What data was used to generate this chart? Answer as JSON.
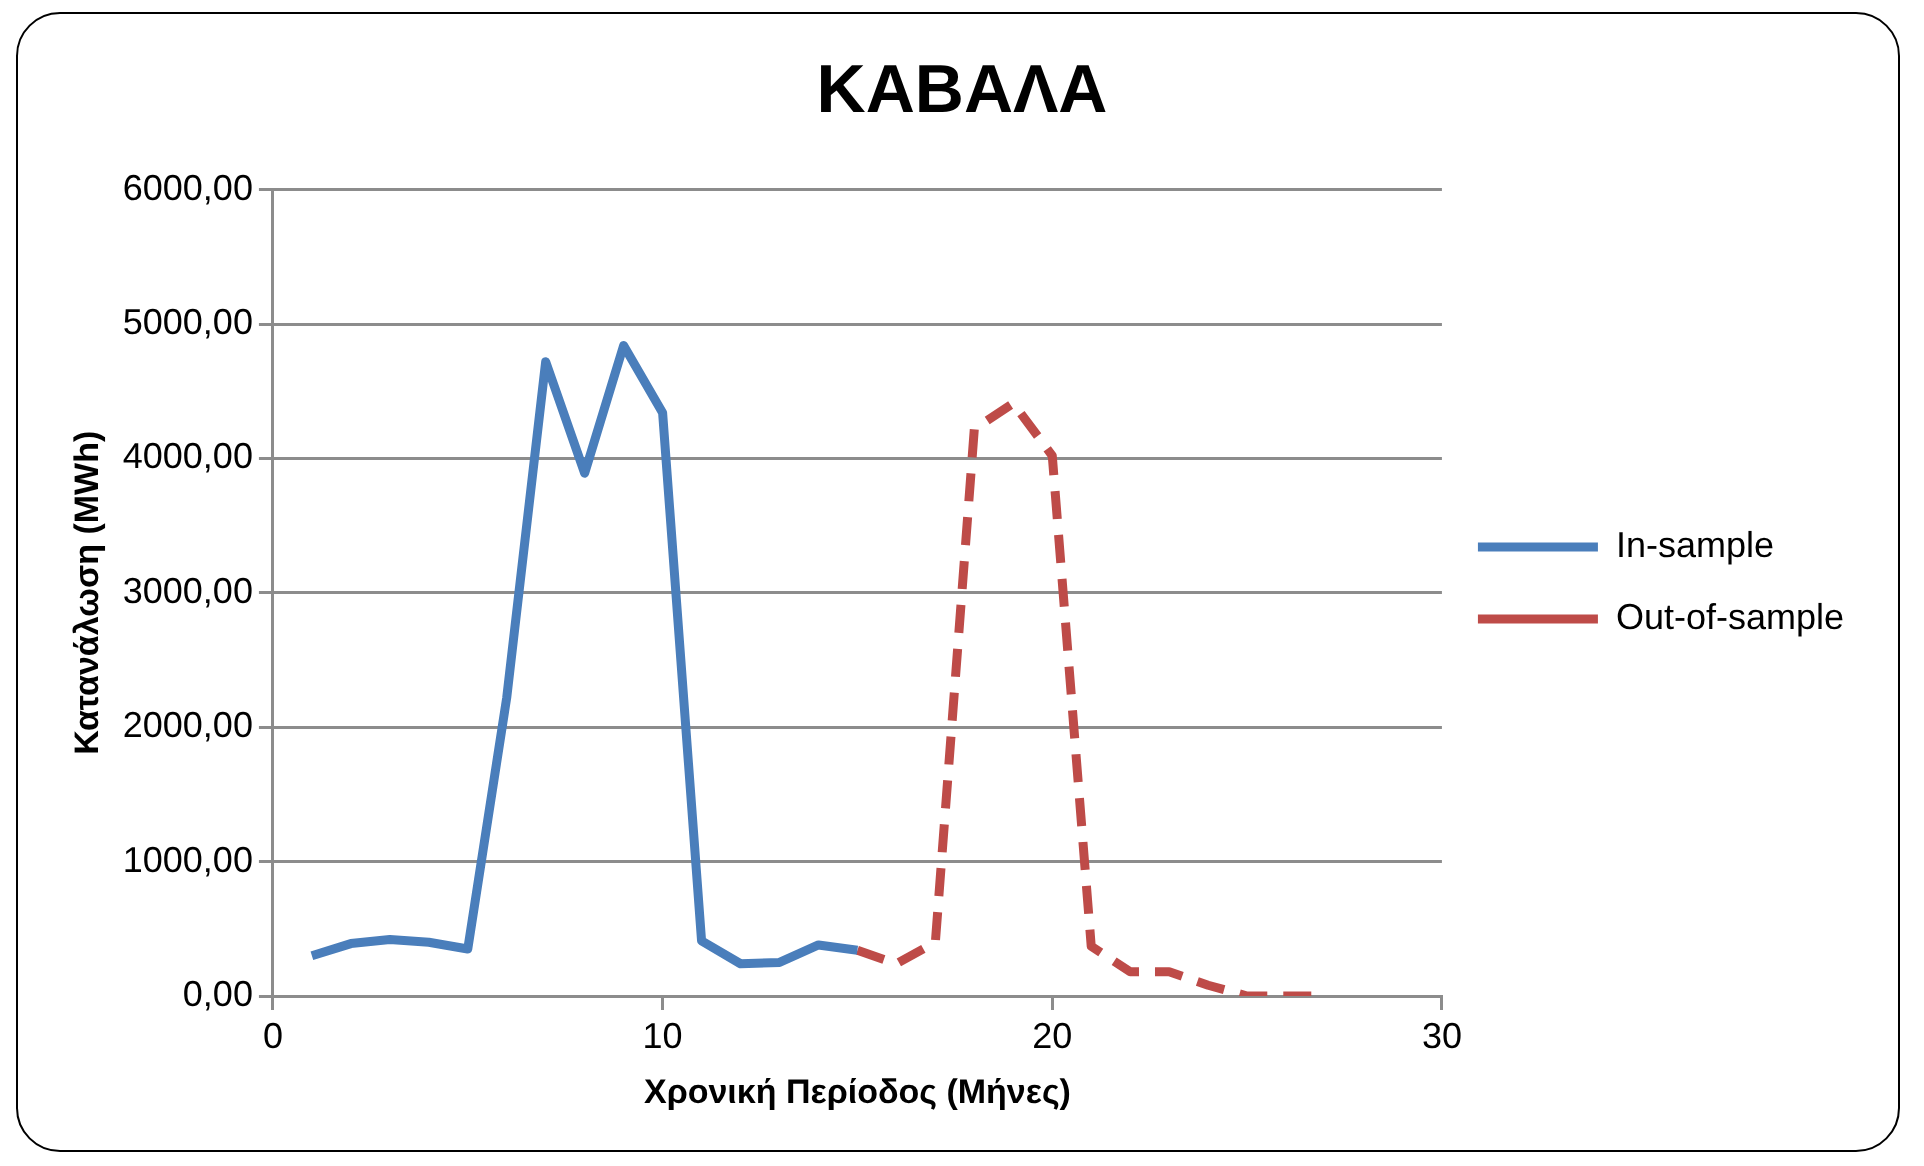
{
  "chart_data": {
    "type": "line",
    "title": "ΚΑΒΑΛΑ",
    "xlabel": "Χρονική Περίοδος (Μήνες)",
    "ylabel": "Κατανάλωση (MWh)",
    "series": [
      {
        "name": "In-sample",
        "color": "#4a7ebb",
        "line_style": "solid",
        "x": [
          1,
          2,
          3,
          4,
          5,
          6,
          7,
          8,
          9,
          10,
          11,
          12,
          13,
          14,
          15
        ],
        "values": [
          300,
          390,
          420,
          400,
          350,
          2220,
          4720,
          3890,
          4840,
          4340,
          410,
          240,
          250,
          380,
          340
        ]
      },
      {
        "name": "Out-of-sample",
        "color": "#be4b48",
        "line_style": "dashed",
        "x": [
          15,
          16,
          17,
          18,
          19,
          20,
          21,
          22,
          23,
          24,
          25,
          26,
          27
        ],
        "values": [
          340,
          240,
          400,
          4220,
          4410,
          4020,
          370,
          180,
          180,
          80,
          0,
          0,
          0
        ]
      }
    ],
    "xlim": [
      0,
      30
    ],
    "xticks": [
      0,
      10,
      20,
      30
    ],
    "ylim": [
      0,
      6000
    ],
    "yticks": [
      {
        "value": 0,
        "label": "0,00"
      },
      {
        "value": 1000,
        "label": "1000,00"
      },
      {
        "value": 2000,
        "label": "2000,00"
      },
      {
        "value": 3000,
        "label": "3000,00"
      },
      {
        "value": 4000,
        "label": "4000,00"
      },
      {
        "value": 5000,
        "label": "5000,00"
      },
      {
        "value": 6000,
        "label": "6000,00"
      }
    ],
    "grid": "y",
    "legend": "right",
    "marker": "none"
  }
}
